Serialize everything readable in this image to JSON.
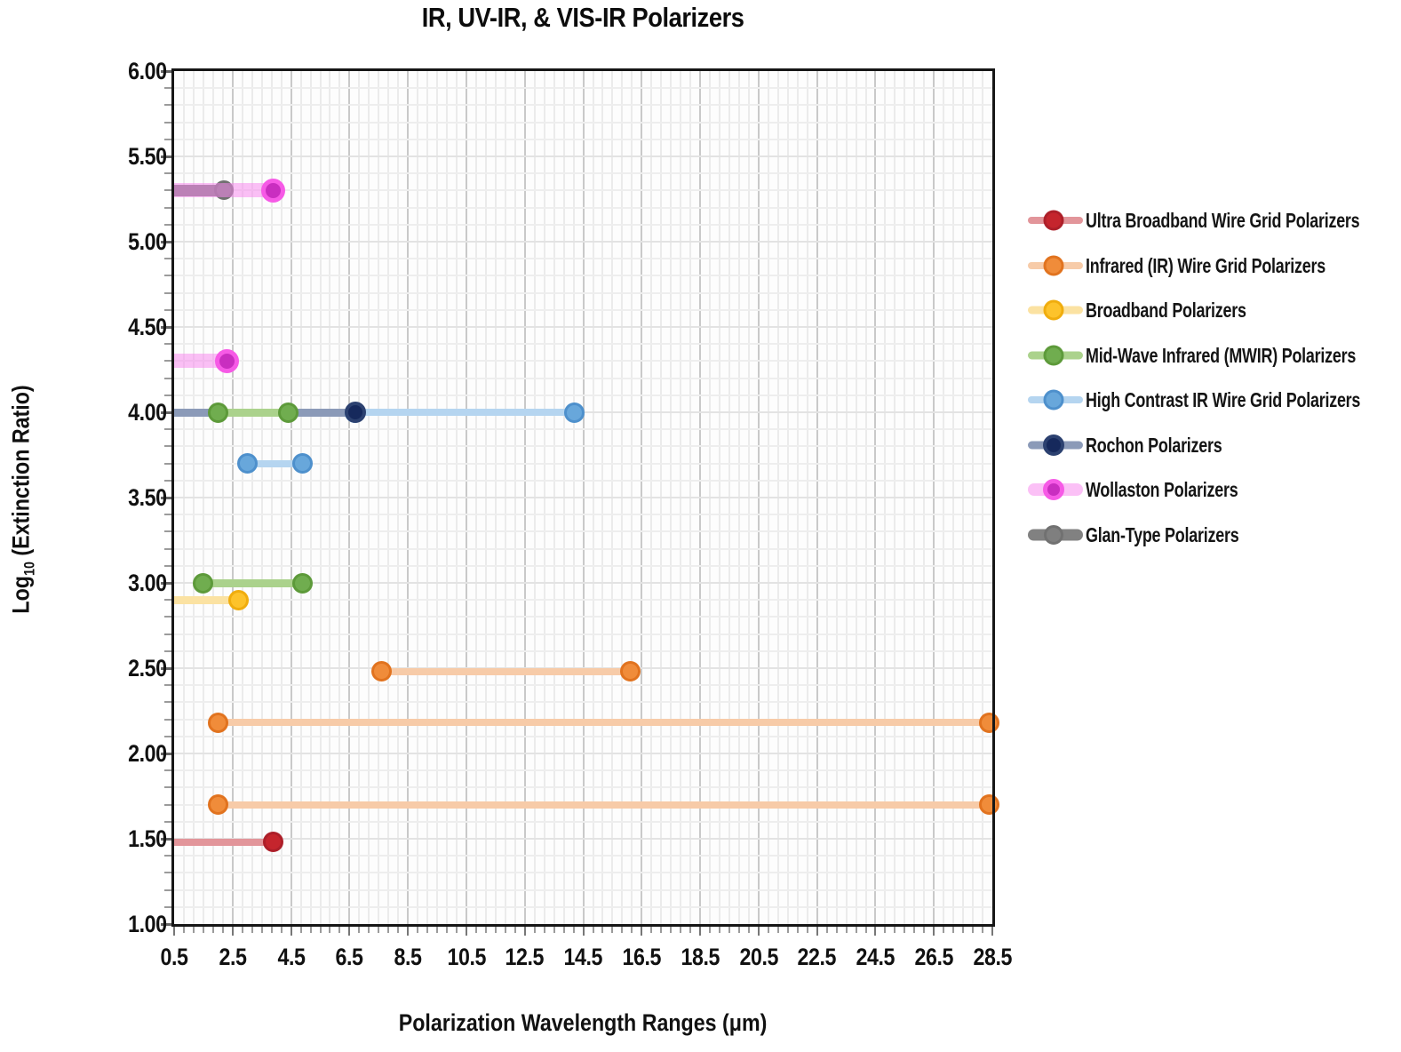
{
  "title": "IR, UV-IR, & VIS-IR Polarizers",
  "x_axis_title": "Polarization Wavelength Ranges (μm)",
  "y_axis_title": {
    "main": "Log",
    "sub": "10",
    "rest": " (Extinction Ratio)"
  },
  "chart_data": {
    "type": "bar",
    "subtype": "horizontal-range-segments",
    "title": "IR, UV-IR, & VIS-IR Polarizers",
    "xlabel": "Polarization Wavelength Ranges (μm)",
    "ylabel": "Log10 (Extinction Ratio)",
    "xlim": [
      0.5,
      28.5
    ],
    "ylim": [
      1.0,
      6.0
    ],
    "x_ticks": [
      "0.5",
      "2.5",
      "4.5",
      "6.5",
      "8.5",
      "10.5",
      "12.5",
      "14.5",
      "16.5",
      "18.5",
      "20.5",
      "22.5",
      "24.5",
      "26.5",
      "28.5"
    ],
    "y_ticks": [
      "6.00",
      "5.50",
      "5.00",
      "4.50",
      "4.00",
      "3.50",
      "3.00",
      "2.50",
      "2.00",
      "1.50",
      "1.00"
    ],
    "x_minor_step": 0.3333,
    "y_minor_step": 0.1,
    "grid": true,
    "legend_position": "right",
    "series": [
      {
        "name": "Ultra Broadband Wire Grid Polarizers",
        "dot_color": "#c5252d",
        "dot_ring_color": "#ad1f29",
        "dot_size": 23,
        "dot_ring": 3,
        "line_color": "#e2959a",
        "line_width": 8,
        "segments": [
          {
            "x_start": 0.5,
            "x_end": 3.9,
            "y": 1.48,
            "start_clipped": true
          }
        ]
      },
      {
        "name": "Infrared (IR) Wire Grid Polarizers",
        "dot_color": "#f08c3a",
        "dot_ring_color": "#e1731f",
        "dot_size": 23,
        "dot_ring": 3,
        "line_color": "#f7cba8",
        "line_width": 8,
        "segments": [
          {
            "x_start": 7.6,
            "x_end": 16.1,
            "y": 2.48
          },
          {
            "x_start": 2.0,
            "x_end": 28.4,
            "y": 2.18
          },
          {
            "x_start": 2.0,
            "x_end": 28.4,
            "y": 1.7
          }
        ]
      },
      {
        "name": "Broadband Polarizers",
        "dot_color": "#fdc32b",
        "dot_ring_color": "#f0ad0e",
        "dot_size": 23,
        "dot_ring": 3,
        "line_color": "#fbe2a2",
        "line_width": 9,
        "segments": [
          {
            "x_start": 0.5,
            "x_end": 2.7,
            "y": 2.9,
            "start_clipped": true
          }
        ]
      },
      {
        "name": "Mid-Wave Infrared (MWIR) Polarizers",
        "dot_color": "#70ad4f",
        "dot_ring_color": "#5d9a3a",
        "dot_size": 23,
        "dot_ring": 3,
        "line_color": "#abd28c",
        "line_width": 9,
        "segments": [
          {
            "x_start": 2.0,
            "x_end": 4.4,
            "y": 4.0
          },
          {
            "x_start": 1.5,
            "x_end": 4.9,
            "y": 3.0
          }
        ]
      },
      {
        "name": "High Contrast IR Wire Grid Polarizers",
        "dot_color": "#68a7db",
        "dot_ring_color": "#4e90cc",
        "dot_size": 23,
        "dot_ring": 3,
        "line_color": "#b5d5f0",
        "line_width": 8,
        "segments": [
          {
            "x_start": 6.7,
            "x_end": 14.2,
            "y": 4.0
          },
          {
            "x_start": 3.0,
            "x_end": 4.9,
            "y": 3.7
          }
        ]
      },
      {
        "name": "Rochon Polarizers",
        "dot_color": "#16295c",
        "dot_ring_color": "#2c4170",
        "dot_size": 24,
        "dot_ring": 4,
        "line_color": "#8b9ab8",
        "line_width": 9,
        "segments": [
          {
            "x_start": 0.5,
            "x_end": 6.7,
            "y": 4.0,
            "start_clipped": true
          }
        ]
      },
      {
        "name": "Wollaston Polarizers",
        "dot_color": "#c92ec0",
        "dot_ring_color": "#f65ae6",
        "dot_size": 27,
        "dot_ring": 5,
        "line_color": "rgba(247,130,238,0.5)",
        "line_width": 16,
        "segments": [
          {
            "x_start": 0.5,
            "x_end": 3.9,
            "y": 5.3,
            "start_clipped": true
          },
          {
            "x_start": 0.5,
            "x_end": 2.3,
            "y": 4.3,
            "start_clipped": true
          }
        ]
      },
      {
        "name": "Glan-Type Polarizers",
        "dot_color": "#7f7f7f",
        "dot_ring_color": "#717171",
        "dot_size": 22,
        "dot_ring": 3,
        "line_color": "rgba(118,118,118,0.92)",
        "line_width": 13,
        "segments": [
          {
            "x_start": 0.5,
            "x_end": 2.2,
            "y": 5.3,
            "start_clipped": true
          }
        ]
      }
    ]
  }
}
